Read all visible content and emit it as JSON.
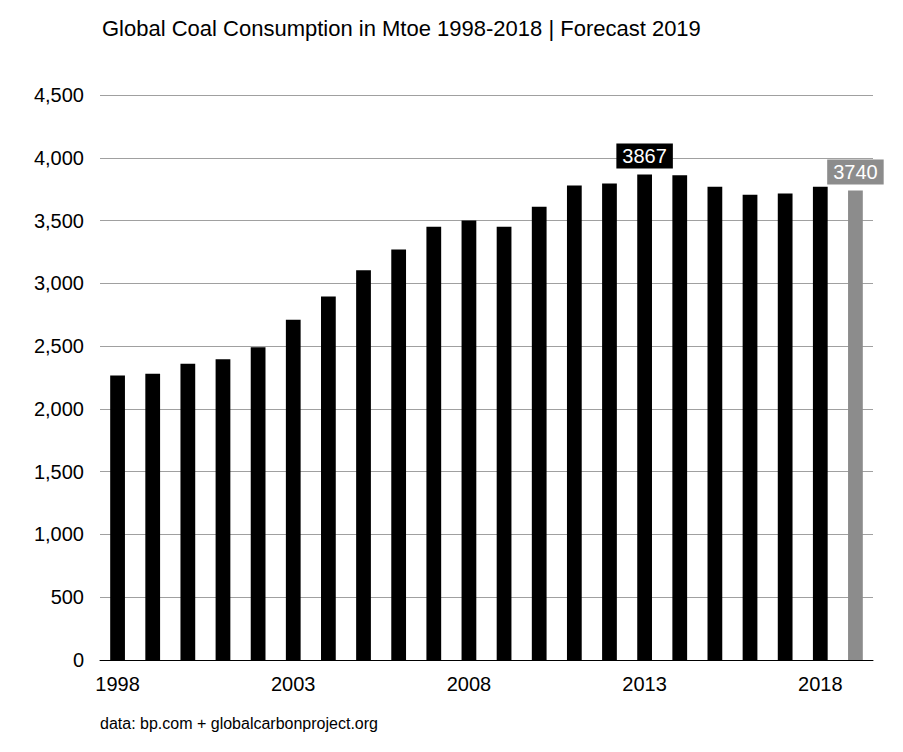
{
  "chart_data": {
    "type": "bar",
    "title": "Global Coal Consumption in Mtoe 1998-2018 | Forecast 2019",
    "annotation": "data: bp.com + globalcarbonproject.org",
    "categories": [
      "1998",
      null,
      null,
      null,
      null,
      "2003",
      null,
      null,
      null,
      null,
      "2008",
      null,
      null,
      null,
      null,
      "2013",
      null,
      null,
      null,
      null,
      "2018",
      null
    ],
    "values": [
      2265,
      2280,
      2360,
      2395,
      2490,
      2710,
      2895,
      3105,
      3270,
      3450,
      3500,
      3450,
      3610,
      3780,
      3795,
      3867,
      3860,
      3770,
      3705,
      3715,
      3770,
      3740
    ],
    "value_labels": [
      null,
      null,
      null,
      null,
      null,
      null,
      null,
      null,
      null,
      null,
      null,
      null,
      null,
      null,
      null,
      "3867",
      null,
      null,
      null,
      null,
      null,
      "3740"
    ],
    "colors": [
      "#000000",
      "#000000",
      "#000000",
      "#000000",
      "#000000",
      "#000000",
      "#000000",
      "#000000",
      "#000000",
      "#000000",
      "#000000",
      "#000000",
      "#000000",
      "#000000",
      "#000000",
      "#000000",
      "#000000",
      "#000000",
      "#000000",
      "#000000",
      "#000000",
      "#8c8c8c"
    ],
    "ylim": [
      0,
      4500
    ],
    "yticks": [
      0,
      500,
      {
        "value": 1000,
        "label": "1,000"
      },
      {
        "value": 1500,
        "label": "1,500"
      },
      {
        "value": 2000,
        "label": "2,000"
      },
      {
        "value": 2500,
        "label": "2,500"
      },
      {
        "value": 3000,
        "label": "3,000"
      },
      {
        "value": 3500,
        "label": "3,500"
      },
      {
        "value": 4000,
        "label": "4,000"
      },
      {
        "value": 4500,
        "label": "4,500"
      }
    ],
    "grid": true
  }
}
